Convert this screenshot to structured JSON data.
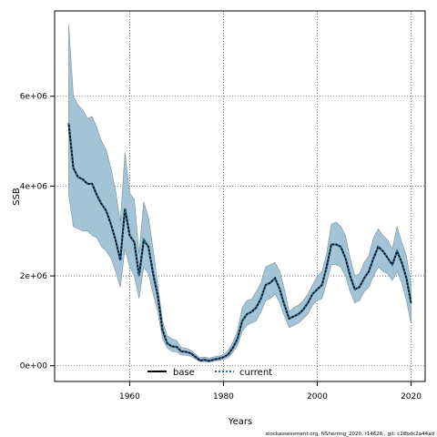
{
  "chart_data": {
    "type": "area",
    "xlabel": "Years",
    "ylabel": "SSB",
    "xlim": [
      1944,
      2023
    ],
    "ylim": [
      -350000,
      7900000
    ],
    "xticks": [
      1960,
      1980,
      2000,
      2020
    ],
    "xtick_labels": [
      "1960",
      "1980",
      "2000",
      "2020"
    ],
    "yticks": [
      0,
      2000000,
      4000000,
      6000000
    ],
    "ytick_labels": [
      "0e+00",
      "2e+06",
      "4e+06",
      "6e+06"
    ],
    "grid": true,
    "grid_style": "dotted",
    "legend_position": "bottom-left",
    "footer": "stockassessment.org, NSherring_2020, r14626 , git: c28bdc2a44ad",
    "band_color": "#a3c3d6",
    "band_edge_color": "#7d8f9c",
    "x": [
      1947,
      1948,
      1949,
      1950,
      1951,
      1952,
      1953,
      1954,
      1955,
      1956,
      1957,
      1958,
      1959,
      1960,
      1961,
      1962,
      1963,
      1964,
      1965,
      1966,
      1967,
      1968,
      1969,
      1970,
      1971,
      1972,
      1973,
      1974,
      1975,
      1976,
      1977,
      1978,
      1979,
      1980,
      1981,
      1982,
      1983,
      1984,
      1985,
      1986,
      1987,
      1988,
      1989,
      1990,
      1991,
      1992,
      1993,
      1994,
      1995,
      1996,
      1997,
      1998,
      1999,
      2000,
      2001,
      2002,
      2003,
      2004,
      2005,
      2006,
      2007,
      2008,
      2009,
      2010,
      2011,
      2012,
      2013,
      2014,
      2015,
      2016,
      2017,
      2018,
      2019,
      2020
    ],
    "series": [
      {
        "name": "base",
        "color": "#000000",
        "style": "solid",
        "values": [
          5400000,
          4400000,
          4200000,
          4150000,
          4050000,
          4050000,
          3800000,
          3600000,
          3450000,
          3150000,
          2800000,
          2350000,
          3500000,
          2900000,
          2750000,
          2000000,
          2800000,
          2650000,
          2050000,
          1550000,
          800000,
          500000,
          430000,
          420000,
          320000,
          310000,
          280000,
          200000,
          120000,
          130000,
          110000,
          140000,
          160000,
          190000,
          250000,
          400000,
          600000,
          1000000,
          1150000,
          1200000,
          1300000,
          1500000,
          1800000,
          1850000,
          1950000,
          1700000,
          1350000,
          1050000,
          1100000,
          1150000,
          1250000,
          1400000,
          1600000,
          1700000,
          1800000,
          2200000,
          2700000,
          2700000,
          2650000,
          2400000,
          2000000,
          1700000,
          1750000,
          1950000,
          2100000,
          2400000,
          2650000,
          2550000,
          2400000,
          2250000,
          2550000,
          2300000,
          1950000,
          1400000
        ]
      },
      {
        "name": "current",
        "color": "#1f6f9f",
        "style": "dotted",
        "values": [
          5400000,
          4400000,
          4200000,
          4150000,
          4050000,
          4050000,
          3800000,
          3600000,
          3450000,
          3150000,
          2800000,
          2350000,
          3500000,
          2900000,
          2750000,
          2000000,
          2800000,
          2650000,
          2050000,
          1550000,
          800000,
          500000,
          430000,
          420000,
          320000,
          310000,
          280000,
          200000,
          120000,
          130000,
          110000,
          140000,
          160000,
          190000,
          250000,
          400000,
          600000,
          1000000,
          1150000,
          1200000,
          1300000,
          1500000,
          1800000,
          1850000,
          1950000,
          1700000,
          1350000,
          1050000,
          1100000,
          1150000,
          1250000,
          1400000,
          1600000,
          1700000,
          1800000,
          2200000,
          2700000,
          2700000,
          2650000,
          2400000,
          2000000,
          1700000,
          1750000,
          1950000,
          2100000,
          2400000,
          2650000,
          2550000,
          2400000,
          2250000,
          2550000,
          2300000,
          1950000,
          1400000
        ]
      }
    ],
    "upper": [
      7600000,
      6000000,
      5800000,
      5700000,
      5500000,
      5550000,
      5300000,
      5000000,
      4800000,
      4400000,
      3900000,
      3200000,
      4750000,
      3850000,
      3700000,
      2500000,
      3650000,
      3300000,
      2600000,
      1800000,
      1000000,
      670000,
      600000,
      560000,
      410000,
      390000,
      350000,
      260000,
      180000,
      190000,
      170000,
      200000,
      220000,
      250000,
      340000,
      520000,
      780000,
      1300000,
      1450000,
      1480000,
      1650000,
      1850000,
      2200000,
      2250000,
      2300000,
      2100000,
      1700000,
      1200000,
      1300000,
      1350000,
      1450000,
      1600000,
      1800000,
      2000000,
      2100000,
      2500000,
      3150000,
      3200000,
      3100000,
      2900000,
      2400000,
      2000000,
      2050000,
      2300000,
      2450000,
      2850000,
      3050000,
      2900000,
      2800000,
      2600000,
      3100000,
      2750000,
      2450000,
      1800000
    ],
    "lower": [
      3800000,
      3100000,
      3050000,
      3000000,
      3000000,
      2900000,
      2850000,
      2650000,
      2550000,
      2400000,
      2100000,
      1750000,
      2600000,
      2200000,
      2000000,
      1500000,
      2200000,
      2050000,
      1600000,
      1200000,
      600000,
      400000,
      320000,
      310000,
      240000,
      230000,
      210000,
      150000,
      90000,
      95000,
      80000,
      100000,
      120000,
      140000,
      180000,
      300000,
      450000,
      770000,
      900000,
      950000,
      1000000,
      1200000,
      1450000,
      1500000,
      1600000,
      1400000,
      1100000,
      850000,
      900000,
      950000,
      1050000,
      1150000,
      1350000,
      1450000,
      1500000,
      1850000,
      2250000,
      2250000,
      2200000,
      2000000,
      1650000,
      1400000,
      1450000,
      1650000,
      1750000,
      2000000,
      2200000,
      2100000,
      2050000,
      1900000,
      2100000,
      1850000,
      1450000,
      950000
    ]
  }
}
